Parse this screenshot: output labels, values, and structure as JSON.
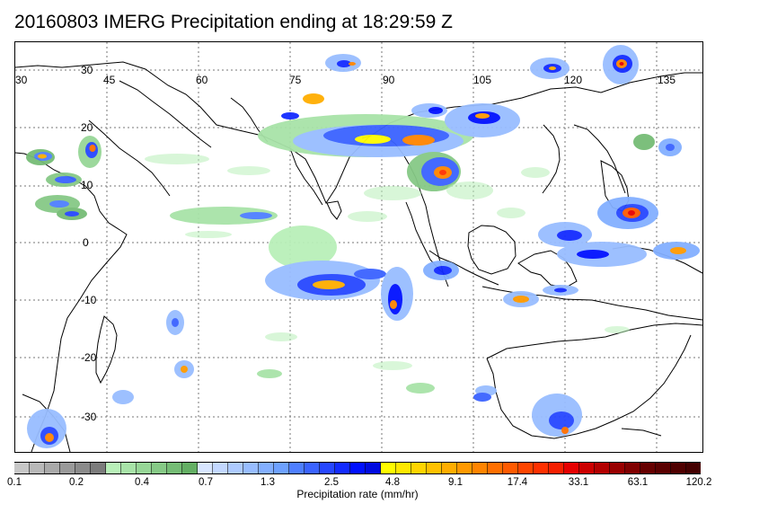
{
  "title": "20160803 IMERG Precipitation ending at 18:29:59 Z",
  "map": {
    "region": "Indian Ocean and Maritime Continent",
    "longitude_labels": [
      "30",
      "45",
      "60",
      "75",
      "90",
      "105",
      "120",
      "135"
    ],
    "latitude_labels": [
      "30",
      "20",
      "10",
      "0",
      "-10",
      "-20",
      "-30"
    ],
    "grid": "dotted",
    "coastline_color": "#000000"
  },
  "legend": {
    "title": "Precipitation rate (mm/hr)",
    "tick_labels": [
      "0.1",
      "0.2",
      "0.4",
      "0.7",
      "1.3",
      "2.5",
      "4.8",
      "9.1",
      "17.4",
      "33.1",
      "63.1",
      "120.2"
    ],
    "colors": [
      "#c7c7c7",
      "#b8b8b8",
      "#a9a9a9",
      "#9a9a9a",
      "#8b8b8b",
      "#7c7c7c",
      "#b9f0b9",
      "#a8e3a8",
      "#97d697",
      "#86c986",
      "#75bc75",
      "#64af64",
      "#d8e6ff",
      "#c3d8ff",
      "#aecbff",
      "#98bdff",
      "#83afff",
      "#6ea1ff",
      "#4f7fff",
      "#3b63ff",
      "#2747ff",
      "#132bff",
      "#0010ff",
      "#000ae0",
      "#fffb00",
      "#ffe800",
      "#ffd400",
      "#ffc100",
      "#ffad00",
      "#ff9900",
      "#ff8400",
      "#ff6f00",
      "#ff5a00",
      "#ff4500",
      "#ff3000",
      "#f51f00",
      "#e60000",
      "#cc0000",
      "#b30000",
      "#990000",
      "#800000",
      "#660000",
      "#5a0000",
      "#4f0000",
      "#440000"
    ]
  }
}
